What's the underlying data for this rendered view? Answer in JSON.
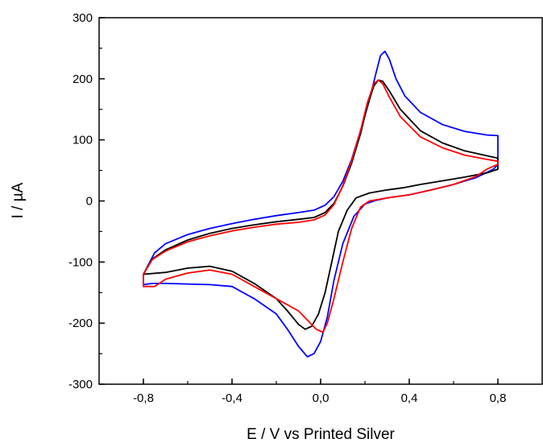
{
  "chart_data": {
    "type": "line",
    "title": "",
    "xlabel": "E / V vs Printed Silver",
    "ylabel": "I / µA",
    "xlim": [
      -1.0,
      1.0
    ],
    "ylim": [
      -300,
      300
    ],
    "x_ticks": [
      -0.8,
      -0.4,
      0.0,
      0.4,
      0.8
    ],
    "x_tick_labels": [
      "-0,8",
      "-0,4",
      "0,0",
      "0,4",
      "0,8"
    ],
    "y_ticks": [
      -300,
      -200,
      -100,
      0,
      100,
      200,
      300
    ],
    "y_tick_labels": [
      "-300",
      "-200",
      "-100",
      "0",
      "100",
      "200",
      "300"
    ],
    "grid": false,
    "legend": "none",
    "series": [
      {
        "color": "#0000ff",
        "points": [
          [
            -0.8,
            -120
          ],
          [
            -0.75,
            -85
          ],
          [
            -0.7,
            -70
          ],
          [
            -0.6,
            -55
          ],
          [
            -0.5,
            -45
          ],
          [
            -0.4,
            -37
          ],
          [
            -0.3,
            -30
          ],
          [
            -0.2,
            -24
          ],
          [
            -0.1,
            -19
          ],
          [
            -0.03,
            -15
          ],
          [
            0.02,
            -7
          ],
          [
            0.06,
            7
          ],
          [
            0.1,
            32
          ],
          [
            0.14,
            68
          ],
          [
            0.18,
            115
          ],
          [
            0.22,
            165
          ],
          [
            0.25,
            210
          ],
          [
            0.27,
            238
          ],
          [
            0.29,
            245
          ],
          [
            0.31,
            232
          ],
          [
            0.34,
            200
          ],
          [
            0.38,
            172
          ],
          [
            0.45,
            145
          ],
          [
            0.55,
            125
          ],
          [
            0.65,
            114
          ],
          [
            0.75,
            108
          ],
          [
            0.8,
            107
          ],
          [
            0.8,
            60
          ],
          [
            0.78,
            52
          ],
          [
            0.7,
            38
          ],
          [
            0.6,
            27
          ],
          [
            0.5,
            18
          ],
          [
            0.4,
            10
          ],
          [
            0.3,
            5
          ],
          [
            0.25,
            1
          ],
          [
            0.2,
            -5
          ],
          [
            0.15,
            -25
          ],
          [
            0.1,
            -70
          ],
          [
            0.06,
            -130
          ],
          [
            0.03,
            -190
          ],
          [
            0.0,
            -230
          ],
          [
            -0.03,
            -250
          ],
          [
            -0.06,
            -255
          ],
          [
            -0.1,
            -238
          ],
          [
            -0.15,
            -210
          ],
          [
            -0.2,
            -185
          ],
          [
            -0.3,
            -160
          ],
          [
            -0.4,
            -140
          ],
          [
            -0.5,
            -137
          ],
          [
            -0.6,
            -136
          ],
          [
            -0.7,
            -135
          ],
          [
            -0.76,
            -135
          ],
          [
            -0.8,
            -137
          ]
        ]
      },
      {
        "color": "#000000",
        "points": [
          [
            -0.8,
            -120
          ],
          [
            -0.76,
            -95
          ],
          [
            -0.7,
            -80
          ],
          [
            -0.6,
            -64
          ],
          [
            -0.5,
            -53
          ],
          [
            -0.4,
            -45
          ],
          [
            -0.3,
            -39
          ],
          [
            -0.2,
            -34
          ],
          [
            -0.1,
            -30
          ],
          [
            -0.03,
            -27
          ],
          [
            0.02,
            -19
          ],
          [
            0.06,
            -4
          ],
          [
            0.1,
            24
          ],
          [
            0.14,
            62
          ],
          [
            0.18,
            110
          ],
          [
            0.21,
            155
          ],
          [
            0.24,
            188
          ],
          [
            0.26,
            198
          ],
          [
            0.28,
            196
          ],
          [
            0.31,
            180
          ],
          [
            0.36,
            150
          ],
          [
            0.45,
            115
          ],
          [
            0.55,
            95
          ],
          [
            0.65,
            82
          ],
          [
            0.75,
            74
          ],
          [
            0.8,
            70
          ],
          [
            0.8,
            52
          ],
          [
            0.75,
            46
          ],
          [
            0.65,
            39
          ],
          [
            0.55,
            33
          ],
          [
            0.45,
            27
          ],
          [
            0.38,
            22
          ],
          [
            0.3,
            18
          ],
          [
            0.22,
            13
          ],
          [
            0.16,
            5
          ],
          [
            0.12,
            -15
          ],
          [
            0.08,
            -50
          ],
          [
            0.05,
            -100
          ],
          [
            0.02,
            -150
          ],
          [
            -0.01,
            -185
          ],
          [
            -0.04,
            -205
          ],
          [
            -0.07,
            -210
          ],
          [
            -0.1,
            -202
          ],
          [
            -0.15,
            -180
          ],
          [
            -0.2,
            -160
          ],
          [
            -0.3,
            -135
          ],
          [
            -0.4,
            -115
          ],
          [
            -0.5,
            -107
          ],
          [
            -0.6,
            -110
          ],
          [
            -0.7,
            -117
          ],
          [
            -0.8,
            -120
          ]
        ]
      },
      {
        "color": "#ff0000",
        "points": [
          [
            -0.8,
            -120
          ],
          [
            -0.76,
            -96
          ],
          [
            -0.7,
            -82
          ],
          [
            -0.6,
            -67
          ],
          [
            -0.5,
            -57
          ],
          [
            -0.4,
            -49
          ],
          [
            -0.3,
            -43
          ],
          [
            -0.2,
            -38
          ],
          [
            -0.1,
            -35
          ],
          [
            -0.03,
            -31
          ],
          [
            0.02,
            -23
          ],
          [
            0.06,
            -6
          ],
          [
            0.1,
            25
          ],
          [
            0.14,
            66
          ],
          [
            0.18,
            115
          ],
          [
            0.21,
            160
          ],
          [
            0.24,
            192
          ],
          [
            0.26,
            198
          ],
          [
            0.28,
            192
          ],
          [
            0.31,
            170
          ],
          [
            0.36,
            138
          ],
          [
            0.45,
            105
          ],
          [
            0.55,
            87
          ],
          [
            0.65,
            75
          ],
          [
            0.75,
            68
          ],
          [
            0.8,
            65
          ],
          [
            0.8,
            60
          ],
          [
            0.75,
            52
          ],
          [
            0.7,
            40
          ],
          [
            0.6,
            27
          ],
          [
            0.5,
            18
          ],
          [
            0.4,
            10
          ],
          [
            0.3,
            5
          ],
          [
            0.22,
            0
          ],
          [
            0.18,
            -10
          ],
          [
            0.14,
            -45
          ],
          [
            0.1,
            -100
          ],
          [
            0.06,
            -160
          ],
          [
            0.03,
            -200
          ],
          [
            0.01,
            -215
          ],
          [
            -0.02,
            -210
          ],
          [
            -0.06,
            -195
          ],
          [
            -0.1,
            -180
          ],
          [
            -0.2,
            -160
          ],
          [
            -0.3,
            -140
          ],
          [
            -0.4,
            -120
          ],
          [
            -0.5,
            -113
          ],
          [
            -0.6,
            -118
          ],
          [
            -0.7,
            -128
          ],
          [
            -0.75,
            -140
          ],
          [
            -0.8,
            -140
          ]
        ]
      }
    ]
  }
}
